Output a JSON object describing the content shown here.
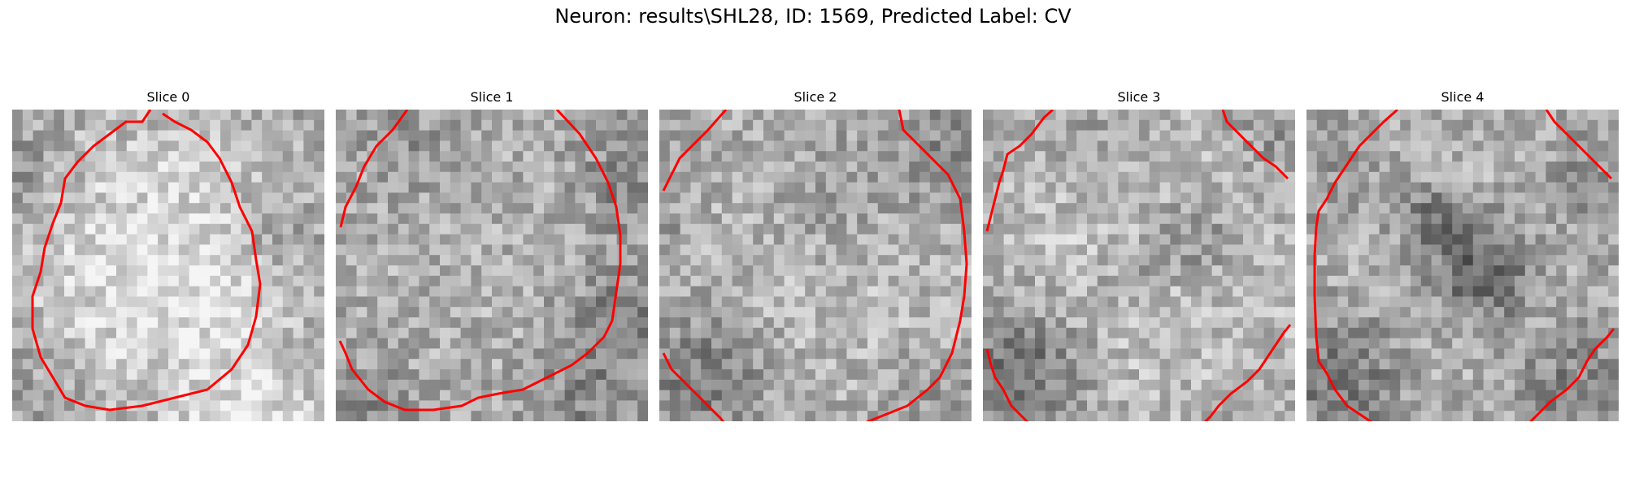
{
  "figure": {
    "title": "Neuron: results\\SHL28, ID: 1569, Predicted Label: CV"
  },
  "colors": {
    "contour": "#ff0000",
    "background": "#ffffff"
  },
  "panels": [
    {
      "title": "Slice 0"
    },
    {
      "title": "Slice 1"
    },
    {
      "title": "Slice 2"
    },
    {
      "title": "Slice 3"
    },
    {
      "title": "Slice 4"
    }
  ]
}
